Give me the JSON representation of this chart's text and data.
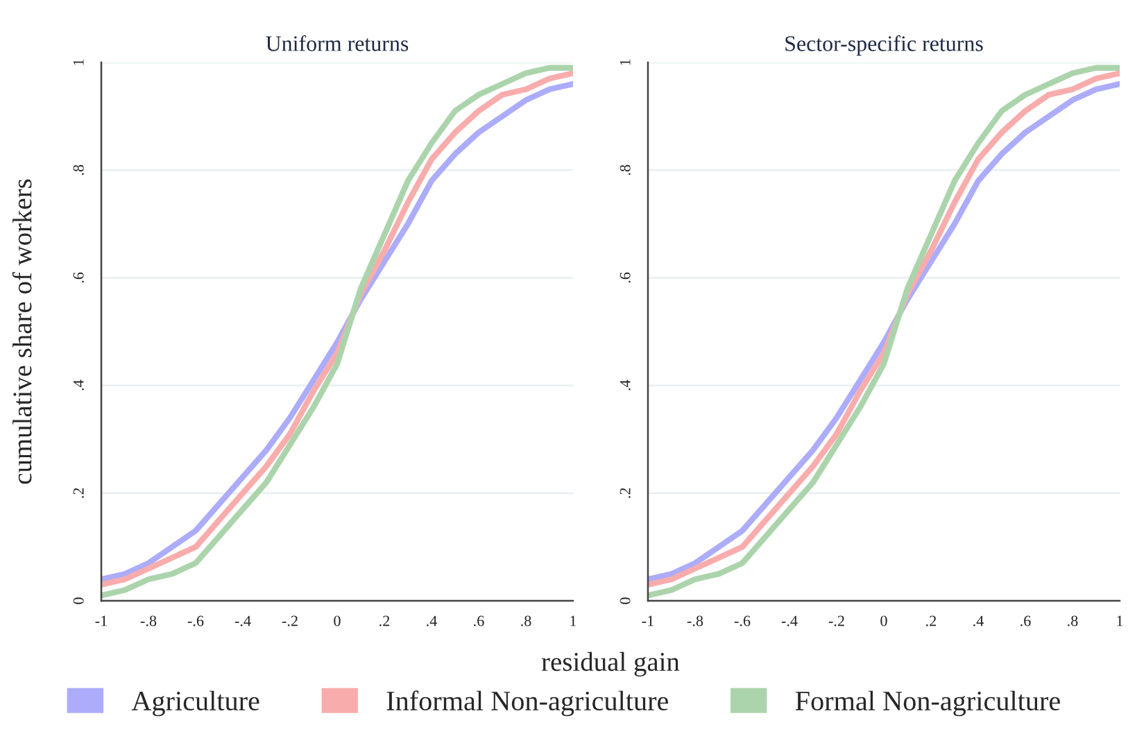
{
  "chart_data": [
    {
      "type": "line",
      "title": "Uniform returns",
      "xlabel": "residual gain",
      "ylabel": "cumulative share of workers",
      "x": [
        -1,
        -0.9,
        -0.8,
        -0.7,
        -0.6,
        -0.5,
        -0.4,
        -0.3,
        -0.2,
        -0.1,
        0,
        0.1,
        0.2,
        0.3,
        0.4,
        0.5,
        0.6,
        0.7,
        0.8,
        0.9,
        1
      ],
      "series": [
        {
          "name": "Agriculture",
          "color": "#acacfa",
          "values": [
            0.04,
            0.05,
            0.07,
            0.1,
            0.13,
            0.18,
            0.23,
            0.28,
            0.34,
            0.41,
            0.48,
            0.56,
            0.63,
            0.7,
            0.78,
            0.83,
            0.87,
            0.9,
            0.93,
            0.95,
            0.96
          ]
        },
        {
          "name": "Informal Non-agriculture",
          "color": "#f9acac",
          "values": [
            0.03,
            0.04,
            0.06,
            0.08,
            0.1,
            0.15,
            0.2,
            0.25,
            0.31,
            0.39,
            0.46,
            0.57,
            0.65,
            0.74,
            0.82,
            0.87,
            0.91,
            0.94,
            0.95,
            0.97,
            0.98
          ]
        },
        {
          "name": "Formal Non-agriculture",
          "color": "#acd4ac",
          "values": [
            0.01,
            0.02,
            0.04,
            0.05,
            0.07,
            0.12,
            0.17,
            0.22,
            0.29,
            0.36,
            0.44,
            0.58,
            0.68,
            0.78,
            0.85,
            0.91,
            0.94,
            0.96,
            0.98,
            0.99,
            0.99
          ]
        }
      ],
      "xlim": [
        -1,
        1
      ],
      "xticks": [
        -1,
        {
          "value": -0.8,
          "label": "-.8"
        },
        {
          "value": -0.6,
          "label": "-.6"
        },
        {
          "value": -0.4,
          "label": "-.4"
        },
        {
          "value": -0.2,
          "label": "-.2"
        },
        0,
        {
          "value": 0.2,
          "label": ".2"
        },
        {
          "value": 0.4,
          "label": ".4"
        },
        {
          "value": 0.6,
          "label": ".6"
        },
        {
          "value": 0.8,
          "label": ".8"
        },
        1
      ],
      "ylim": [
        0,
        1
      ],
      "yticks": [
        0,
        {
          "value": 0.2,
          "label": ".2"
        },
        {
          "value": 0.4,
          "label": ".4"
        },
        {
          "value": 0.6,
          "label": ".6"
        },
        {
          "value": 0.8,
          "label": ".8"
        },
        1
      ],
      "grid": "y",
      "legend": "bottom"
    },
    {
      "type": "line",
      "title": "Sector-specific returns",
      "x": [
        -1,
        -0.9,
        -0.8,
        -0.7,
        -0.6,
        -0.5,
        -0.4,
        -0.3,
        -0.2,
        -0.1,
        0,
        0.1,
        0.2,
        0.3,
        0.4,
        0.5,
        0.6,
        0.7,
        0.8,
        0.9,
        1
      ],
      "series": [
        {
          "color": "#acacfa",
          "values": [
            0.04,
            0.05,
            0.07,
            0.1,
            0.13,
            0.18,
            0.23,
            0.28,
            0.34,
            0.41,
            0.48,
            0.56,
            0.63,
            0.7,
            0.78,
            0.83,
            0.87,
            0.9,
            0.93,
            0.95,
            0.96
          ]
        },
        {
          "color": "#f9acac",
          "values": [
            0.03,
            0.04,
            0.06,
            0.08,
            0.1,
            0.15,
            0.2,
            0.25,
            0.31,
            0.39,
            0.46,
            0.57,
            0.65,
            0.74,
            0.82,
            0.87,
            0.91,
            0.94,
            0.95,
            0.97,
            0.98
          ]
        },
        {
          "color": "#acd4ac",
          "values": [
            0.01,
            0.02,
            0.04,
            0.05,
            0.07,
            0.12,
            0.17,
            0.22,
            0.29,
            0.36,
            0.44,
            0.58,
            0.68,
            0.78,
            0.85,
            0.91,
            0.94,
            0.96,
            0.98,
            0.99,
            0.99
          ]
        }
      ],
      "xlim": [
        -1,
        1
      ],
      "xticks": [
        -1,
        {
          "value": -0.8,
          "label": "-.8"
        },
        {
          "value": -0.6,
          "label": "-.6"
        },
        {
          "value": -0.4,
          "label": "-.4"
        },
        {
          "value": -0.2,
          "label": "-.2"
        },
        0,
        {
          "value": 0.2,
          "label": ".2"
        },
        {
          "value": 0.4,
          "label": ".4"
        },
        {
          "value": 0.6,
          "label": ".6"
        },
        {
          "value": 0.8,
          "label": ".8"
        },
        1
      ],
      "ylim": [
        0,
        1
      ],
      "yticks": [
        0,
        {
          "value": 0.2,
          "label": ".2"
        },
        {
          "value": 0.4,
          "label": ".4"
        },
        {
          "value": 0.6,
          "label": ".6"
        },
        {
          "value": 0.8,
          "label": ".8"
        },
        1
      ],
      "grid": "y"
    }
  ]
}
